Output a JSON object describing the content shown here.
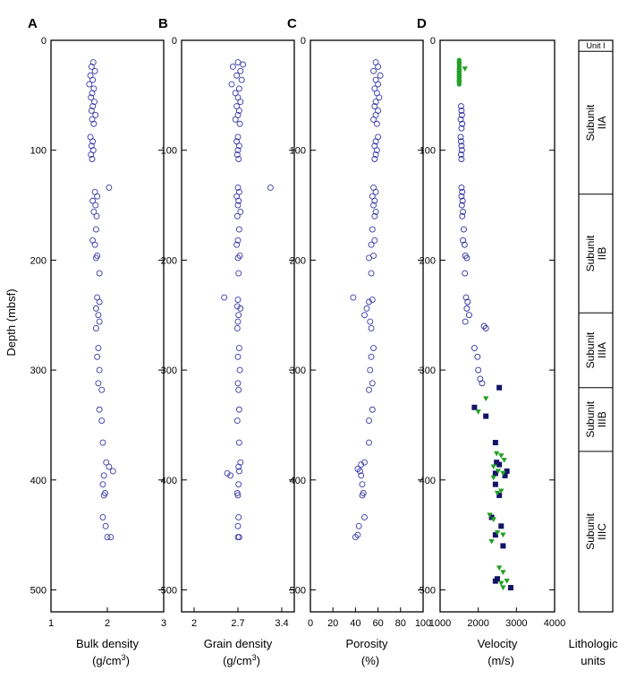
{
  "chart_data": {
    "type": "scatter",
    "depth_axis": {
      "label": "Depth (mbsf)",
      "range": [
        0,
        520
      ],
      "inverted": true,
      "ticks": [
        0,
        100,
        200,
        300,
        400,
        500
      ]
    },
    "panels": [
      {
        "id": "A",
        "letter": "A",
        "title": "Bulk density",
        "units_base": "(g/cm",
        "units_sup": "3",
        "units_end": ")",
        "xlim": [
          1,
          3
        ],
        "ticks": [
          1,
          2,
          3
        ],
        "tick_labels": [
          "1",
          "2",
          "3"
        ],
        "series": [
          {
            "marker": "circle",
            "color": "#3a3aa8",
            "depth": [
              20,
              24,
              28,
              32,
              36,
              40,
              44,
              48,
              52,
              56,
              60,
              64,
              68,
              72,
              76,
              88,
              92,
              96,
              100,
              104,
              108,
              134,
              138,
              142,
              146,
              150,
              156,
              160,
              172,
              182,
              186,
              196,
              198,
              212,
              234,
              238,
              244,
              250,
              256,
              262,
              280,
              288,
              300,
              312,
              318,
              336,
              346,
              366,
              384,
              388,
              392,
              396,
              404,
              412,
              414,
              434,
              442,
              452,
              452
            ],
            "value": [
              1.75,
              1.72,
              1.78,
              1.7,
              1.74,
              1.68,
              1.76,
              1.73,
              1.71,
              1.77,
              1.74,
              1.72,
              1.79,
              1.73,
              1.76,
              1.7,
              1.74,
              1.72,
              1.75,
              1.71,
              1.73,
              2.03,
              1.78,
              1.82,
              1.74,
              1.79,
              1.76,
              1.81,
              1.8,
              1.74,
              1.78,
              1.82,
              1.8,
              1.86,
              1.82,
              1.86,
              1.8,
              1.84,
              1.86,
              1.8,
              1.84,
              1.82,
              1.86,
              1.84,
              1.9,
              1.86,
              1.9,
              1.92,
              1.98,
              2.03,
              2.1,
              1.94,
              1.92,
              1.96,
              1.94,
              1.92,
              1.97,
              2.06,
              2.0
            ]
          }
        ]
      },
      {
        "id": "B",
        "letter": "B",
        "title": "Grain density",
        "units_base": "(g/cm",
        "units_sup": "3",
        "units_end": ")",
        "xlim": [
          1.8,
          3.6
        ],
        "ticks": [
          2.0,
          2.7,
          3.4
        ],
        "tick_labels": [
          "2",
          "2.7",
          "3.4"
        ],
        "series": [
          {
            "marker": "circle",
            "color": "#3a3aa8",
            "depth": [
              20,
              22,
              24,
              28,
              32,
              36,
              40,
              44,
              48,
              52,
              56,
              60,
              64,
              68,
              72,
              76,
              88,
              92,
              96,
              100,
              104,
              108,
              134,
              134,
              138,
              142,
              146,
              150,
              156,
              160,
              172,
              182,
              186,
              196,
              198,
              212,
              234,
              236,
              242,
              244,
              250,
              256,
              262,
              280,
              288,
              300,
              312,
              318,
              336,
              346,
              366,
              384,
              388,
              392,
              394,
              396,
              404,
              412,
              414,
              434,
              442,
              452,
              452
            ],
            "value": [
              2.7,
              2.78,
              2.62,
              2.74,
              2.68,
              2.76,
              2.6,
              2.72,
              2.66,
              2.7,
              2.74,
              2.68,
              2.72,
              2.7,
              2.66,
              2.73,
              2.7,
              2.68,
              2.72,
              2.7,
              2.69,
              2.71,
              3.22,
              2.7,
              2.72,
              2.68,
              2.71,
              2.7,
              2.74,
              2.69,
              2.72,
              2.7,
              2.68,
              2.73,
              2.7,
              2.71,
              2.48,
              2.7,
              2.69,
              2.74,
              2.71,
              2.7,
              2.69,
              2.72,
              2.7,
              2.73,
              2.7,
              2.71,
              2.72,
              2.69,
              2.72,
              2.74,
              2.71,
              2.72,
              2.53,
              2.58,
              2.71,
              2.69,
              2.7,
              2.71,
              2.7,
              2.72,
              2.7
            ]
          }
        ]
      },
      {
        "id": "C",
        "letter": "C",
        "title": "Porosity",
        "units_base": "(%)",
        "units_sup": "",
        "units_end": "",
        "xlim": [
          0,
          100
        ],
        "ticks": [
          0,
          20,
          40,
          60,
          80,
          100
        ],
        "tick_labels": [
          "0",
          "20",
          "40",
          "60",
          "80",
          "100"
        ],
        "series": [
          {
            "marker": "circle",
            "color": "#3a3aa8",
            "depth": [
              20,
              24,
              28,
              32,
              36,
              40,
              44,
              48,
              52,
              56,
              60,
              64,
              68,
              72,
              76,
              88,
              92,
              96,
              100,
              104,
              108,
              134,
              138,
              142,
              146,
              150,
              156,
              160,
              172,
              182,
              186,
              196,
              198,
              212,
              234,
              236,
              238,
              244,
              250,
              256,
              262,
              280,
              288,
              300,
              312,
              318,
              336,
              346,
              366,
              384,
              386,
              390,
              392,
              396,
              404,
              412,
              414,
              434,
              442,
              450,
              452
            ],
            "value": [
              58,
              60,
              56,
              62,
              58,
              60,
              57,
              59,
              61,
              58,
              57,
              60,
              58,
              56,
              59,
              60,
              58,
              57,
              59,
              58,
              57,
              56,
              58,
              55,
              57,
              56,
              58,
              57,
              55,
              57,
              54,
              56,
              52,
              54,
              38,
              55,
              52,
              50,
              48,
              53,
              54,
              56,
              54,
              53,
              55,
              52,
              55,
              52,
              52,
              48,
              45,
              42,
              44,
              45,
              46,
              47,
              46,
              48,
              43,
              42,
              40
            ]
          }
        ]
      },
      {
        "id": "D",
        "letter": "D",
        "title": "Velocity",
        "units_base": "(m/s)",
        "units_sup": "",
        "units_end": "",
        "xlim": [
          1000,
          4000
        ],
        "ticks": [
          1000,
          2000,
          3000,
          4000
        ],
        "tick_labels": [
          "1000",
          "2000",
          "3000",
          "4000"
        ],
        "series": [
          {
            "marker": "circle",
            "color": "#2e2ea0",
            "depth": [
              60,
              64,
              68,
              72,
              76,
              80,
              88,
              92,
              96,
              100,
              104,
              108,
              134,
              138,
              142,
              146,
              150,
              156,
              160,
              172,
              182,
              186,
              196,
              198,
              212,
              234,
              238,
              244,
              250,
              256,
              260,
              262,
              280,
              288,
              300,
              308,
              312
            ],
            "value": [
              1550,
              1560,
              1570,
              1540,
              1580,
              1560,
              1540,
              1550,
              1560,
              1570,
              1550,
              1560,
              1560,
              1580,
              1560,
              1590,
              1570,
              1600,
              1580,
              1620,
              1600,
              1640,
              1660,
              1700,
              1650,
              1680,
              1720,
              1700,
              1760,
              1660,
              2150,
              2200,
              1900,
              1980,
              2000,
              2050,
              2100
            ]
          },
          {
            "marker": "square",
            "color": "#131366",
            "depth": [
              316,
              334,
              342,
              366,
              384,
              386,
              392,
              394,
              396,
              404,
              414,
              434,
              442,
              450,
              460,
              490,
              492,
              498
            ],
            "value": [
              2550,
              1900,
              2200,
              2450,
              2480,
              2550,
              2750,
              2450,
              2700,
              2450,
              2550,
              2350,
              2600,
              2450,
              2650,
              2500,
              2450,
              2850
            ]
          },
          {
            "marker": "tri-down",
            "color": "#22a024",
            "depth": [
              22,
              26,
              28,
              30,
              32,
              34,
              36,
              38,
              40,
              326,
              338,
              376,
              378,
              382,
              388,
              392,
              394,
              398,
              410,
              412,
              432,
              436,
              448,
              450,
              456,
              480,
              484,
              492,
              494,
              498
            ],
            "value": [
              1500,
              1650,
              1500,
              1500,
              1500,
              1500,
              1500,
              1500,
              1500,
              2200,
              2000,
              2480,
              2600,
              2680,
              2400,
              2520,
              2650,
              2400,
              2600,
              2500,
              2300,
              2400,
              2500,
              2650,
              2350,
              2550,
              2650,
              2750,
              2600,
              2650
            ]
          },
          {
            "marker": "circle-filled",
            "color": "#22a024",
            "depth": [
              18,
              20,
              22,
              24,
              26,
              28,
              30,
              32,
              34,
              36,
              38,
              40
            ],
            "value": [
              1500,
              1500,
              1500,
              1500,
              1500,
              1500,
              1500,
              1500,
              1500,
              1500,
              1500,
              1500
            ]
          }
        ]
      }
    ],
    "lithologic_units": {
      "title_line1": "Lithologic",
      "title_line2": "units",
      "units": [
        {
          "label": "Unit I",
          "line1": "Unit I",
          "line2": "",
          "top": 0,
          "bottom": 10
        },
        {
          "label": "Subunit IIA",
          "line1": "Subunit",
          "line2": "IIA",
          "top": 10,
          "bottom": 140
        },
        {
          "label": "Subunit IIB",
          "line1": "Subunit",
          "line2": "IIB",
          "top": 140,
          "bottom": 248
        },
        {
          "label": "Subunit IIIA",
          "line1": "Subunit",
          "line2": "IIIA",
          "top": 248,
          "bottom": 316
        },
        {
          "label": "Subunit IIIB",
          "line1": "Subunit",
          "line2": "IIIB",
          "top": 316,
          "bottom": 374
        },
        {
          "label": "Subunit IIIC",
          "line1": "Subunit",
          "line2": "IIIC",
          "top": 374,
          "bottom": 520
        }
      ]
    }
  }
}
